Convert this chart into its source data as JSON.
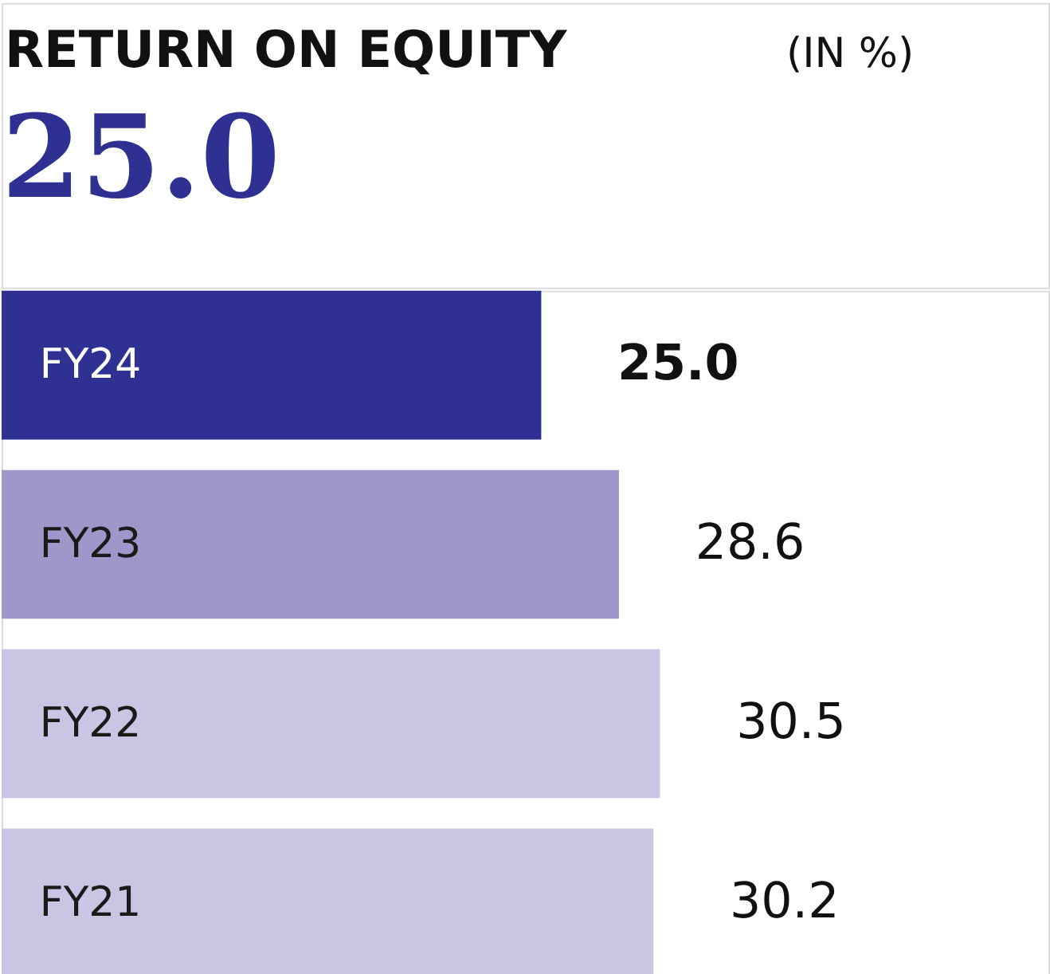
{
  "chart_data": {
    "type": "bar",
    "orientation": "horizontal",
    "title": "RETURN ON EQUITY",
    "subtitle": "(IN %)",
    "annotations": [
      "25.0"
    ],
    "categories": [
      "FY24",
      "FY23",
      "FY22",
      "FY21"
    ],
    "values": [
      25.0,
      28.6,
      30.5,
      30.2
    ],
    "colors": [
      "#2e3192",
      "#9d98c9",
      "#c8c6e3",
      "#c8c6e3"
    ],
    "value_labels": [
      "25.0",
      "28.6",
      "30.5",
      "30.2"
    ]
  }
}
